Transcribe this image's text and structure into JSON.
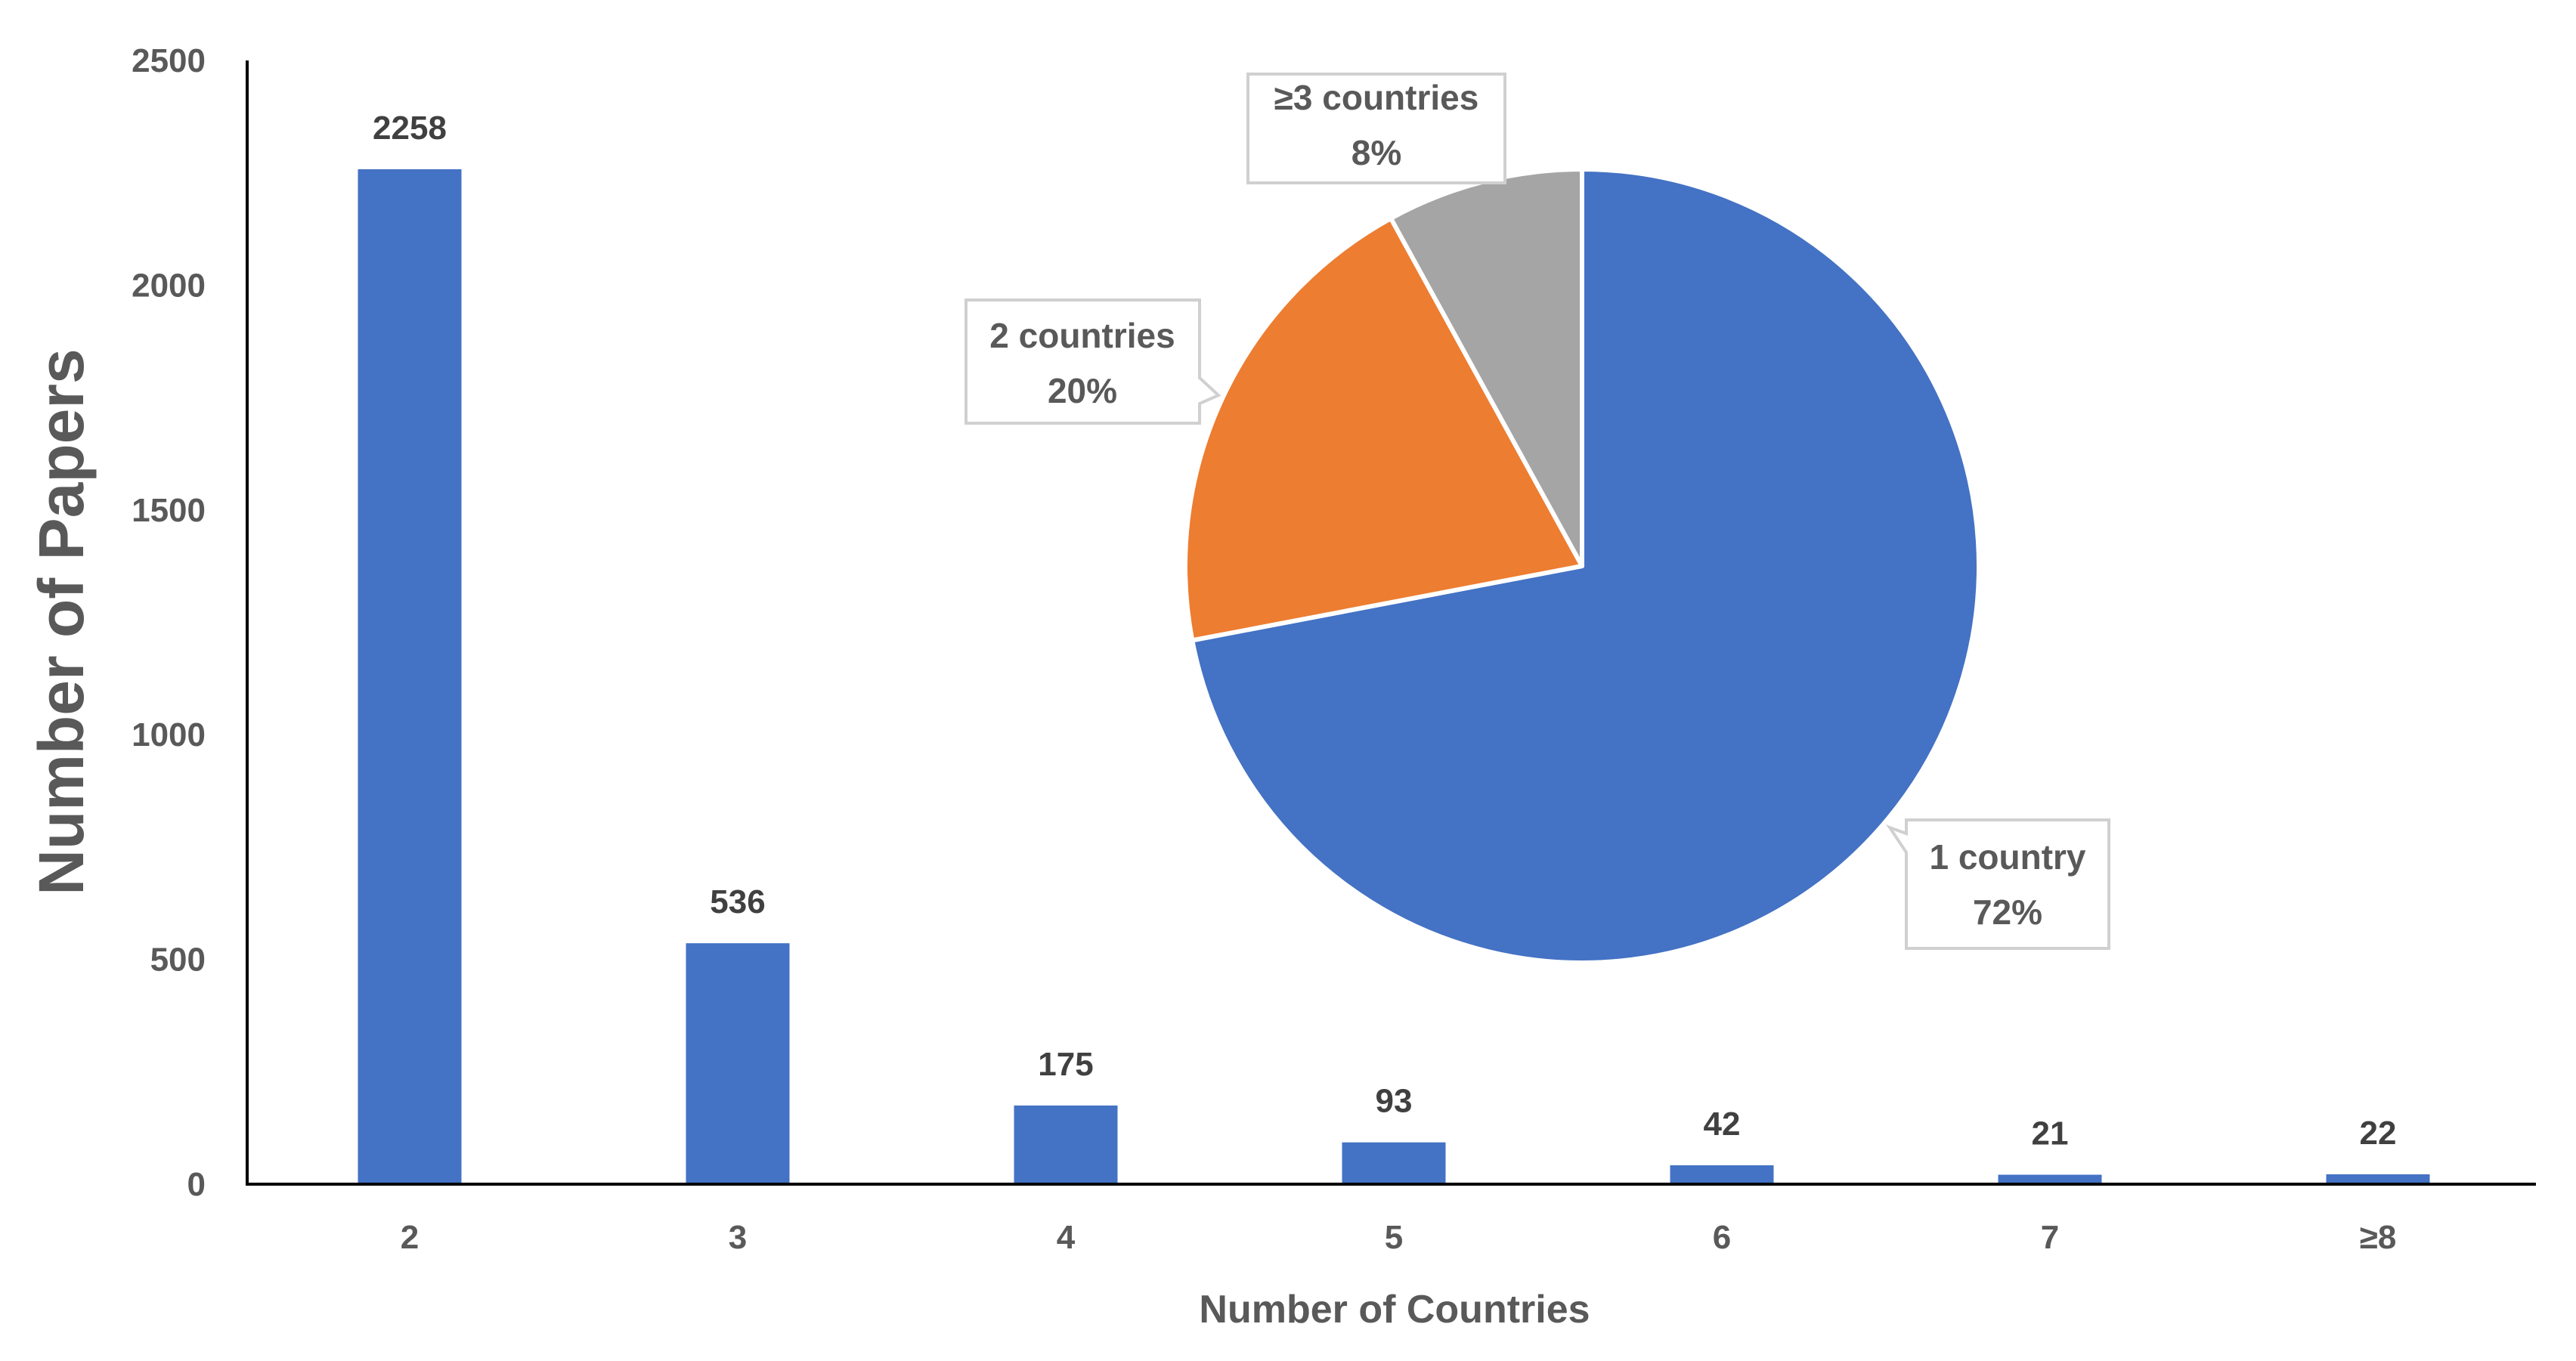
{
  "chart_data": [
    {
      "type": "bar",
      "xlabel": "Number of Countries",
      "ylabel": "Number of Papers",
      "categories": [
        "2",
        "3",
        "4",
        "5",
        "6",
        "7",
        "≥8"
      ],
      "values": [
        2258,
        536,
        175,
        93,
        42,
        21,
        22
      ],
      "data_labels": [
        "2258",
        "536",
        "175",
        "93",
        "42",
        "21",
        "22"
      ],
      "ylim": [
        0,
        2500
      ],
      "yticks": [
        "0",
        "500",
        "1000",
        "1500",
        "2000",
        "2500"
      ],
      "grid": false,
      "color": "#4472C4"
    },
    {
      "type": "pie",
      "slices": [
        {
          "label": "1 country",
          "value": 72,
          "percent_label": "72%",
          "color": "#4472C4"
        },
        {
          "label": "2 countries",
          "value": 20,
          "percent_label": "20%",
          "color": "#ED7D31"
        },
        {
          "label": "≥3 countries",
          "value": 8,
          "percent_label": "8%",
          "color": "#A5A5A5"
        }
      ]
    }
  ]
}
